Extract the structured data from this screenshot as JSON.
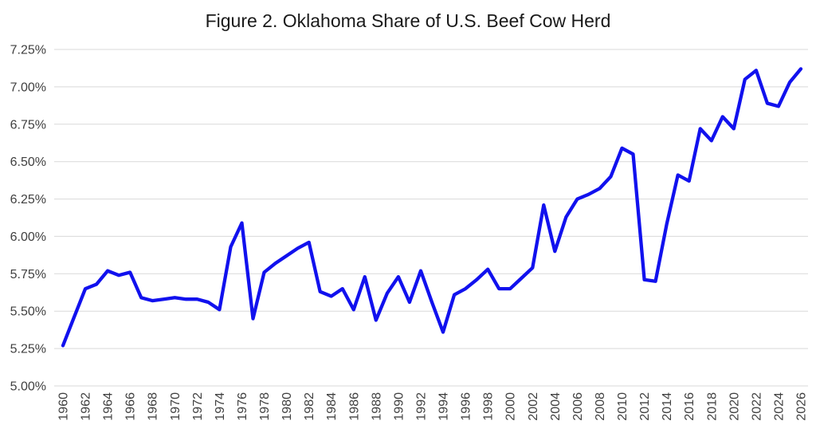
{
  "chart_data": {
    "type": "line",
    "title": "Figure 2. Oklahoma Share of U.S. Beef Cow Herd",
    "xlabel": "",
    "ylabel": "",
    "x": [
      1960,
      1961,
      1962,
      1963,
      1964,
      1965,
      1966,
      1967,
      1968,
      1969,
      1970,
      1971,
      1972,
      1973,
      1974,
      1975,
      1976,
      1977,
      1978,
      1979,
      1980,
      1981,
      1982,
      1983,
      1984,
      1985,
      1986,
      1987,
      1988,
      1989,
      1990,
      1991,
      1992,
      1993,
      1994,
      1995,
      1996,
      1997,
      1998,
      1999,
      2000,
      2001,
      2002,
      2003,
      2004,
      2005,
      2006,
      2007,
      2008,
      2009,
      2010,
      2011,
      2012,
      2013,
      2014,
      2015,
      2016,
      2017,
      2018,
      2019,
      2020,
      2021,
      2022,
      2023,
      2024,
      2025,
      2026
    ],
    "values": [
      5.27,
      5.46,
      5.65,
      5.68,
      5.77,
      5.74,
      5.76,
      5.59,
      5.57,
      5.58,
      5.59,
      5.58,
      5.58,
      5.56,
      5.51,
      5.93,
      6.09,
      5.45,
      5.76,
      5.82,
      5.87,
      5.92,
      5.96,
      5.63,
      5.6,
      5.65,
      5.51,
      5.73,
      5.44,
      5.62,
      5.73,
      5.56,
      5.77,
      5.56,
      5.36,
      5.61,
      5.65,
      5.71,
      5.78,
      5.65,
      5.65,
      5.72,
      5.79,
      6.21,
      5.9,
      6.13,
      6.25,
      6.28,
      6.32,
      6.4,
      6.59,
      6.55,
      5.71,
      5.7,
      6.08,
      6.41,
      6.37,
      6.72,
      6.64,
      6.8,
      6.72,
      7.05,
      7.11,
      6.89,
      6.87,
      7.03,
      7.12
    ],
    "ylim": [
      5.0,
      7.25
    ],
    "ytick_step": 0.25,
    "ytick_labels": [
      "5.00%",
      "5.25%",
      "5.50%",
      "5.75%",
      "6.00%",
      "6.25%",
      "6.50%",
      "6.75%",
      "7.00%",
      "7.25%"
    ],
    "xtick_labels": [
      "1960",
      "1962",
      "1964",
      "1966",
      "1968",
      "1970",
      "1972",
      "1974",
      "1976",
      "1978",
      "1980",
      "1982",
      "1984",
      "1986",
      "1988",
      "1990",
      "1992",
      "1994",
      "1996",
      "1998",
      "2000",
      "2002",
      "2004",
      "2006",
      "2008",
      "2010",
      "2012",
      "2014",
      "2016",
      "2018",
      "2020",
      "2022",
      "2024",
      "2026"
    ],
    "grid": "horizontal",
    "legend": "none",
    "colors": {
      "line": "#1111ee",
      "grid": "#d9d9d9",
      "tick_label": "#404040",
      "title": "#1a1a1a",
      "background": "#ffffff"
    }
  }
}
